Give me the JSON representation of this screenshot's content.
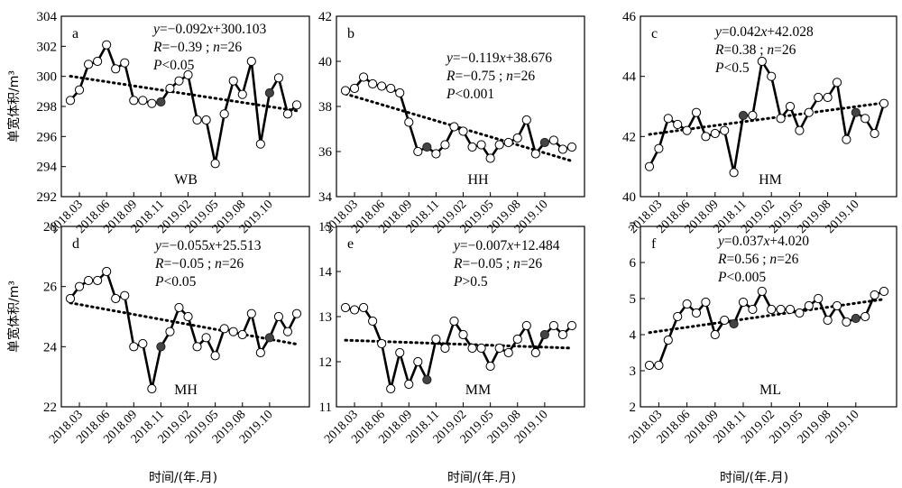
{
  "figure": {
    "y_axis_label": "单宽体积/m³",
    "x_axis_label": "时间/(年.月)",
    "x_tick_labels": [
      "2018.03",
      "2018.06",
      "2018.09",
      "2018.11",
      "2019.02",
      "2019.05",
      "2019.08",
      "2019.10"
    ]
  },
  "chart_data": [
    {
      "type": "line",
      "letter": "a",
      "code": "WB",
      "ylim": [
        292,
        304
      ],
      "yticks": [
        292,
        294,
        296,
        298,
        300,
        302,
        304
      ],
      "annotation": [
        "y=−0.092x+300.103",
        "R=−0.39 ; n=26",
        "P<0.05"
      ],
      "trend": {
        "slope": -0.092,
        "intercept": 300.103
      },
      "values": [
        298.4,
        299.1,
        300.8,
        301.0,
        302.1,
        300.5,
        300.9,
        298.4,
        298.4,
        298.2,
        298.3,
        299.2,
        299.7,
        300.1,
        297.1,
        297.1,
        294.2,
        297.5,
        299.7,
        298.8,
        301.0,
        295.5,
        298.9,
        299.9,
        297.5,
        298.1
      ],
      "filled_points": [
        10,
        22
      ]
    },
    {
      "type": "line",
      "letter": "b",
      "code": "HH",
      "ylim": [
        34,
        42
      ],
      "yticks": [
        34,
        36,
        38,
        40,
        42
      ],
      "annotation": [
        "y=−0.119x+38.676",
        "R=−0.75 ; n=26",
        "P<0.001"
      ],
      "trend": {
        "slope": -0.119,
        "intercept": 38.676
      },
      "values": [
        38.7,
        38.8,
        39.3,
        39.0,
        38.9,
        38.8,
        38.6,
        37.3,
        36.0,
        36.2,
        35.9,
        36.3,
        37.1,
        36.9,
        36.2,
        36.3,
        35.7,
        36.3,
        36.4,
        36.6,
        37.4,
        35.9,
        36.4,
        36.5,
        36.1,
        36.2
      ],
      "filled_points": [
        9,
        22
      ]
    },
    {
      "type": "line",
      "letter": "c",
      "code": "HM",
      "ylim": [
        40,
        46
      ],
      "yticks": [
        40,
        42,
        44,
        46
      ],
      "annotation": [
        "y=0.042x+42.028",
        "R=0.38 ; n=26",
        "P<0.5"
      ],
      "trend": {
        "slope": 0.042,
        "intercept": 42.028
      },
      "values": [
        41.0,
        41.6,
        42.6,
        42.4,
        42.2,
        42.8,
        42.0,
        42.1,
        42.2,
        40.8,
        42.7,
        42.7,
        44.5,
        44.0,
        42.6,
        43.0,
        42.2,
        42.8,
        43.3,
        43.3,
        43.8,
        41.9,
        42.8,
        42.6,
        42.1,
        43.1
      ],
      "filled_points": [
        10,
        22
      ]
    },
    {
      "type": "line",
      "letter": "d",
      "code": "MH",
      "ylim": [
        22,
        28
      ],
      "yticks": [
        22,
        24,
        26,
        28
      ],
      "annotation": [
        "y=−0.055x+25.513",
        "R=−0.05 ; n=26",
        "P<0.05"
      ],
      "trend": {
        "slope": -0.055,
        "intercept": 25.513
      },
      "values": [
        25.6,
        26.0,
        26.2,
        26.2,
        26.5,
        25.6,
        25.7,
        24.0,
        24.1,
        22.6,
        24.0,
        24.5,
        25.3,
        25.0,
        24.0,
        24.3,
        23.7,
        24.6,
        24.5,
        24.4,
        25.1,
        23.8,
        24.3,
        25.0,
        24.5,
        25.1
      ],
      "filled_points": [
        10,
        22
      ]
    },
    {
      "type": "line",
      "letter": "e",
      "code": "MM",
      "ylim": [
        11,
        15
      ],
      "yticks": [
        11,
        12,
        13,
        14,
        15
      ],
      "annotation": [
        "y=−0.007x+12.484",
        "R=−0.05 ; n=26",
        "P>0.5"
      ],
      "trend": {
        "slope": -0.007,
        "intercept": 12.484
      },
      "values": [
        13.2,
        13.15,
        13.2,
        12.9,
        12.4,
        11.4,
        12.2,
        11.5,
        12.0,
        11.6,
        12.5,
        12.3,
        12.9,
        12.6,
        12.3,
        12.3,
        11.9,
        12.3,
        12.2,
        12.5,
        12.8,
        12.2,
        12.6,
        12.8,
        12.6,
        12.8
      ],
      "filled_points": [
        9,
        22
      ]
    },
    {
      "type": "line",
      "letter": "f",
      "code": "ML",
      "ylim": [
        2,
        7
      ],
      "yticks": [
        2,
        3,
        4,
        5,
        6,
        7
      ],
      "annotation": [
        "y=0.037x+4.020",
        "R=0.56 ; n=26",
        "P<0.005"
      ],
      "trend": {
        "slope": 0.037,
        "intercept": 4.02
      },
      "values": [
        3.15,
        3.15,
        3.85,
        4.5,
        4.85,
        4.6,
        4.9,
        4.0,
        4.4,
        4.3,
        4.9,
        4.7,
        5.2,
        4.7,
        4.7,
        4.7,
        4.6,
        4.8,
        5.0,
        4.4,
        4.8,
        4.35,
        4.45,
        4.5,
        5.1,
        5.2
      ],
      "filled_points": [
        9,
        22
      ]
    }
  ]
}
